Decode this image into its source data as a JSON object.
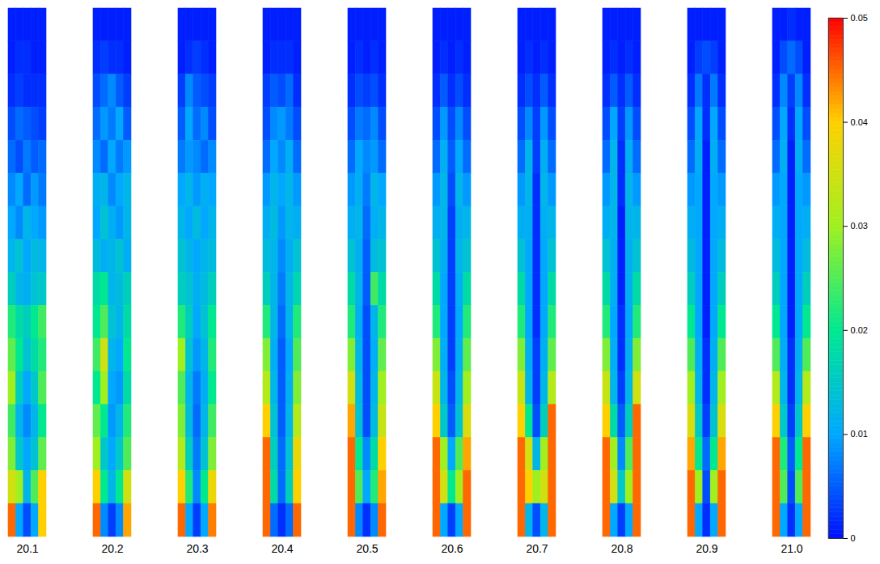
{
  "chart_data": {
    "type": "heatmap",
    "panels": [
      {
        "label": "20.1",
        "cells": [
          [
            0.001,
            0.001,
            0.001,
            0.001,
            0.001
          ],
          [
            0.001,
            0.002,
            0.002,
            0.001,
            0.001
          ],
          [
            0.002,
            0.003,
            0.002,
            0.002,
            0.002
          ],
          [
            0.004,
            0.006,
            0.005,
            0.004,
            0.003
          ],
          [
            0.006,
            0.004,
            0.007,
            0.005,
            0.006
          ],
          [
            0.008,
            0.01,
            0.006,
            0.009,
            0.007
          ],
          [
            0.01,
            0.008,
            0.012,
            0.01,
            0.009
          ],
          [
            0.012,
            0.014,
            0.01,
            0.013,
            0.012
          ],
          [
            0.016,
            0.012,
            0.011,
            0.014,
            0.015
          ],
          [
            0.022,
            0.018,
            0.016,
            0.02,
            0.024
          ],
          [
            0.026,
            0.02,
            0.014,
            0.018,
            0.022
          ],
          [
            0.03,
            0.016,
            0.01,
            0.015,
            0.025
          ],
          [
            0.024,
            0.012,
            0.008,
            0.012,
            0.02
          ],
          [
            0.028,
            0.015,
            0.01,
            0.014,
            0.026
          ],
          [
            0.035,
            0.03,
            0.012,
            0.025,
            0.04
          ],
          [
            0.045,
            0.01,
            0.004,
            0.01,
            0.04
          ]
        ]
      },
      {
        "label": "20.2",
        "cells": [
          [
            0.001,
            0.001,
            0.001,
            0.001,
            0.001
          ],
          [
            0.002,
            0.003,
            0.002,
            0.002,
            0.001
          ],
          [
            0.004,
            0.006,
            0.008,
            0.005,
            0.003
          ],
          [
            0.006,
            0.009,
            0.007,
            0.01,
            0.005
          ],
          [
            0.008,
            0.006,
            0.01,
            0.007,
            0.009
          ],
          [
            0.011,
            0.012,
            0.008,
            0.01,
            0.012
          ],
          [
            0.01,
            0.014,
            0.011,
            0.009,
            0.012
          ],
          [
            0.013,
            0.011,
            0.012,
            0.014,
            0.011
          ],
          [
            0.018,
            0.02,
            0.012,
            0.013,
            0.016
          ],
          [
            0.02,
            0.025,
            0.014,
            0.012,
            0.018
          ],
          [
            0.024,
            0.035,
            0.012,
            0.01,
            0.02
          ],
          [
            0.02,
            0.03,
            0.01,
            0.009,
            0.018
          ],
          [
            0.026,
            0.02,
            0.009,
            0.012,
            0.022
          ],
          [
            0.03,
            0.015,
            0.01,
            0.015,
            0.025
          ],
          [
            0.04,
            0.02,
            0.012,
            0.02,
            0.035
          ],
          [
            0.045,
            0.008,
            0.003,
            0.008,
            0.042
          ]
        ]
      },
      {
        "label": "20.3",
        "cells": [
          [
            0.001,
            0.001,
            0.001,
            0.001,
            0.001
          ],
          [
            0.001,
            0.002,
            0.003,
            0.002,
            0.001
          ],
          [
            0.003,
            0.008,
            0.005,
            0.004,
            0.003
          ],
          [
            0.005,
            0.01,
            0.006,
            0.008,
            0.004
          ],
          [
            0.007,
            0.009,
            0.008,
            0.006,
            0.008
          ],
          [
            0.01,
            0.012,
            0.009,
            0.011,
            0.01
          ],
          [
            0.012,
            0.01,
            0.013,
            0.01,
            0.012
          ],
          [
            0.014,
            0.012,
            0.01,
            0.012,
            0.013
          ],
          [
            0.016,
            0.014,
            0.011,
            0.013,
            0.016
          ],
          [
            0.022,
            0.016,
            0.01,
            0.014,
            0.02
          ],
          [
            0.03,
            0.014,
            0.009,
            0.012,
            0.022
          ],
          [
            0.025,
            0.012,
            0.007,
            0.011,
            0.02
          ],
          [
            0.028,
            0.013,
            0.006,
            0.012,
            0.024
          ],
          [
            0.032,
            0.016,
            0.007,
            0.014,
            0.028
          ],
          [
            0.04,
            0.022,
            0.008,
            0.02,
            0.038
          ],
          [
            0.045,
            0.01,
            0.003,
            0.01,
            0.044
          ]
        ]
      },
      {
        "label": "20.4",
        "cells": [
          [
            0.001,
            0.001,
            0.001,
            0.001,
            0.001
          ],
          [
            0.001,
            0.002,
            0.002,
            0.002,
            0.001
          ],
          [
            0.003,
            0.005,
            0.004,
            0.006,
            0.002
          ],
          [
            0.004,
            0.008,
            0.009,
            0.007,
            0.004
          ],
          [
            0.006,
            0.01,
            0.008,
            0.011,
            0.006
          ],
          [
            0.009,
            0.012,
            0.01,
            0.012,
            0.009
          ],
          [
            0.011,
            0.013,
            0.009,
            0.012,
            0.011
          ],
          [
            0.013,
            0.012,
            0.008,
            0.011,
            0.014
          ],
          [
            0.016,
            0.012,
            0.007,
            0.012,
            0.017
          ],
          [
            0.022,
            0.012,
            0.006,
            0.012,
            0.022
          ],
          [
            0.028,
            0.011,
            0.005,
            0.01,
            0.025
          ],
          [
            0.032,
            0.012,
            0.005,
            0.011,
            0.028
          ],
          [
            0.04,
            0.014,
            0.005,
            0.012,
            0.032
          ],
          [
            0.045,
            0.016,
            0.006,
            0.014,
            0.038
          ],
          [
            0.045,
            0.018,
            0.006,
            0.016,
            0.04
          ],
          [
            0.045,
            0.006,
            0.002,
            0.006,
            0.045
          ]
        ]
      },
      {
        "label": "20.5",
        "cells": [
          [
            0.001,
            0.001,
            0.001,
            0.001,
            0.001
          ],
          [
            0.001,
            0.002,
            0.001,
            0.002,
            0.001
          ],
          [
            0.002,
            0.004,
            0.003,
            0.004,
            0.002
          ],
          [
            0.004,
            0.007,
            0.006,
            0.008,
            0.004
          ],
          [
            0.006,
            0.01,
            0.008,
            0.009,
            0.006
          ],
          [
            0.009,
            0.011,
            0.007,
            0.012,
            0.01
          ],
          [
            0.011,
            0.012,
            0.006,
            0.011,
            0.012
          ],
          [
            0.014,
            0.011,
            0.005,
            0.013,
            0.014
          ],
          [
            0.018,
            0.012,
            0.005,
            0.024,
            0.018
          ],
          [
            0.022,
            0.011,
            0.004,
            0.012,
            0.022
          ],
          [
            0.028,
            0.012,
            0.004,
            0.011,
            0.026
          ],
          [
            0.035,
            0.013,
            0.004,
            0.012,
            0.03
          ],
          [
            0.042,
            0.014,
            0.004,
            0.013,
            0.034
          ],
          [
            0.045,
            0.02,
            0.008,
            0.018,
            0.04
          ],
          [
            0.045,
            0.025,
            0.01,
            0.022,
            0.042
          ],
          [
            0.045,
            0.008,
            0.002,
            0.008,
            0.045
          ]
        ]
      },
      {
        "label": "20.6",
        "cells": [
          [
            0.001,
            0.001,
            0.001,
            0.001,
            0.001
          ],
          [
            0.001,
            0.002,
            0.001,
            0.002,
            0.001
          ],
          [
            0.002,
            0.005,
            0.002,
            0.004,
            0.002
          ],
          [
            0.004,
            0.009,
            0.004,
            0.008,
            0.004
          ],
          [
            0.006,
            0.011,
            0.005,
            0.01,
            0.006
          ],
          [
            0.009,
            0.012,
            0.004,
            0.012,
            0.009
          ],
          [
            0.011,
            0.012,
            0.003,
            0.011,
            0.012
          ],
          [
            0.014,
            0.011,
            0.003,
            0.012,
            0.014
          ],
          [
            0.018,
            0.01,
            0.003,
            0.011,
            0.018
          ],
          [
            0.022,
            0.01,
            0.003,
            0.01,
            0.022
          ],
          [
            0.028,
            0.011,
            0.003,
            0.011,
            0.026
          ],
          [
            0.034,
            0.012,
            0.004,
            0.012,
            0.03
          ],
          [
            0.04,
            0.015,
            0.005,
            0.014,
            0.036
          ],
          [
            0.045,
            0.03,
            0.01,
            0.025,
            0.042
          ],
          [
            0.045,
            0.035,
            0.02,
            0.03,
            0.045
          ],
          [
            0.045,
            0.01,
            0.003,
            0.01,
            0.045
          ]
        ]
      },
      {
        "label": "20.7",
        "cells": [
          [
            0.001,
            0.001,
            0.001,
            0.001,
            0.001
          ],
          [
            0.001,
            0.002,
            0.001,
            0.002,
            0.001
          ],
          [
            0.002,
            0.004,
            0.002,
            0.005,
            0.002
          ],
          [
            0.004,
            0.008,
            0.003,
            0.009,
            0.004
          ],
          [
            0.006,
            0.012,
            0.003,
            0.011,
            0.006
          ],
          [
            0.009,
            0.012,
            0.002,
            0.012,
            0.009
          ],
          [
            0.011,
            0.011,
            0.002,
            0.011,
            0.012
          ],
          [
            0.014,
            0.01,
            0.002,
            0.01,
            0.014
          ],
          [
            0.018,
            0.01,
            0.002,
            0.01,
            0.018
          ],
          [
            0.022,
            0.01,
            0.002,
            0.01,
            0.022
          ],
          [
            0.028,
            0.011,
            0.003,
            0.011,
            0.026
          ],
          [
            0.034,
            0.012,
            0.003,
            0.012,
            0.032
          ],
          [
            0.04,
            0.02,
            0.004,
            0.016,
            0.045
          ],
          [
            0.045,
            0.035,
            0.012,
            0.03,
            0.045
          ],
          [
            0.045,
            0.04,
            0.03,
            0.035,
            0.045
          ],
          [
            0.045,
            0.012,
            0.004,
            0.012,
            0.045
          ]
        ]
      },
      {
        "label": "20.8",
        "cells": [
          [
            0.001,
            0.001,
            0.001,
            0.001,
            0.001
          ],
          [
            0.001,
            0.002,
            0.001,
            0.002,
            0.001
          ],
          [
            0.002,
            0.005,
            0.002,
            0.005,
            0.002
          ],
          [
            0.004,
            0.01,
            0.003,
            0.009,
            0.004
          ],
          [
            0.006,
            0.012,
            0.002,
            0.011,
            0.006
          ],
          [
            0.009,
            0.012,
            0.002,
            0.012,
            0.009
          ],
          [
            0.011,
            0.012,
            0.001,
            0.012,
            0.012
          ],
          [
            0.014,
            0.011,
            0.001,
            0.011,
            0.014
          ],
          [
            0.018,
            0.011,
            0.001,
            0.011,
            0.018
          ],
          [
            0.022,
            0.01,
            0.002,
            0.01,
            0.022
          ],
          [
            0.028,
            0.011,
            0.002,
            0.011,
            0.028
          ],
          [
            0.034,
            0.012,
            0.003,
            0.012,
            0.035
          ],
          [
            0.04,
            0.018,
            0.005,
            0.016,
            0.045
          ],
          [
            0.045,
            0.03,
            0.008,
            0.025,
            0.045
          ],
          [
            0.045,
            0.035,
            0.015,
            0.03,
            0.045
          ],
          [
            0.045,
            0.01,
            0.003,
            0.01,
            0.045
          ]
        ]
      },
      {
        "label": "20.9",
        "cells": [
          [
            0.001,
            0.001,
            0.001,
            0.001,
            0.001
          ],
          [
            0.001,
            0.003,
            0.004,
            0.003,
            0.001
          ],
          [
            0.002,
            0.007,
            0.002,
            0.007,
            0.002
          ],
          [
            0.004,
            0.01,
            0.002,
            0.01,
            0.004
          ],
          [
            0.006,
            0.011,
            0.001,
            0.011,
            0.006
          ],
          [
            0.009,
            0.01,
            0.001,
            0.01,
            0.009
          ],
          [
            0.011,
            0.01,
            0.001,
            0.01,
            0.011
          ],
          [
            0.013,
            0.01,
            0.001,
            0.01,
            0.013
          ],
          [
            0.016,
            0.01,
            0.001,
            0.01,
            0.016
          ],
          [
            0.02,
            0.01,
            0.001,
            0.01,
            0.02
          ],
          [
            0.025,
            0.011,
            0.002,
            0.011,
            0.025
          ],
          [
            0.03,
            0.012,
            0.002,
            0.012,
            0.03
          ],
          [
            0.036,
            0.015,
            0.003,
            0.014,
            0.036
          ],
          [
            0.042,
            0.02,
            0.006,
            0.02,
            0.042
          ],
          [
            0.045,
            0.03,
            0.004,
            0.03,
            0.045
          ],
          [
            0.045,
            0.01,
            0.002,
            0.01,
            0.045
          ]
        ]
      },
      {
        "label": "21.0",
        "cells": [
          [
            0.001,
            0.001,
            0.002,
            0.001,
            0.001
          ],
          [
            0.001,
            0.004,
            0.006,
            0.004,
            0.001
          ],
          [
            0.002,
            0.008,
            0.003,
            0.008,
            0.002
          ],
          [
            0.004,
            0.01,
            0.002,
            0.01,
            0.004
          ],
          [
            0.006,
            0.011,
            0.001,
            0.011,
            0.006
          ],
          [
            0.009,
            0.01,
            0.001,
            0.01,
            0.009
          ],
          [
            0.011,
            0.01,
            0.001,
            0.01,
            0.011
          ],
          [
            0.013,
            0.01,
            0.001,
            0.01,
            0.013
          ],
          [
            0.016,
            0.01,
            0.001,
            0.01,
            0.016
          ],
          [
            0.02,
            0.01,
            0.001,
            0.01,
            0.02
          ],
          [
            0.025,
            0.011,
            0.002,
            0.011,
            0.025
          ],
          [
            0.032,
            0.012,
            0.002,
            0.012,
            0.032
          ],
          [
            0.04,
            0.015,
            0.003,
            0.015,
            0.04
          ],
          [
            0.045,
            0.022,
            0.005,
            0.02,
            0.045
          ],
          [
            0.045,
            0.025,
            0.004,
            0.025,
            0.045
          ],
          [
            0.045,
            0.01,
            0.002,
            0.01,
            0.045
          ]
        ]
      }
    ],
    "colorbar": {
      "range": [
        0,
        0.05
      ],
      "ticks": [
        0,
        0.01,
        0.02,
        0.03,
        0.04,
        0.05
      ]
    }
  }
}
